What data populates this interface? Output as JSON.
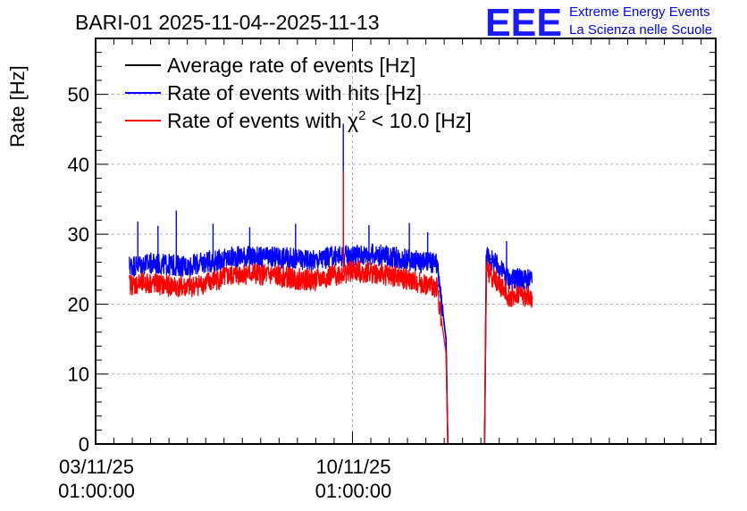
{
  "header": {
    "title": "BARI-01 2025-11-04--2025-11-13",
    "logo_letters": "EEE",
    "logo_line1": "Extreme Energy Events",
    "logo_line2": "La Scienza nelle Scuole"
  },
  "colors": {
    "average": "#000000",
    "hits": "#0000ff",
    "chi2": "#ff0000",
    "grid": "#b0b0b0",
    "logo": "#0000ff"
  },
  "chart_data": {
    "type": "line",
    "title": "BARI-01 2025-11-04--2025-11-13",
    "ylabel": "Rate [Hz]",
    "xlabel": "",
    "ylim": [
      0,
      58
    ],
    "xlim_days": [
      0,
      16.9
    ],
    "y_ticks": [
      0,
      10,
      20,
      30,
      40,
      50
    ],
    "y_tick_labels": [
      "0",
      "10",
      "20",
      "30",
      "40",
      "50"
    ],
    "x_ticks": [
      {
        "day": 0,
        "date": "03/11/25",
        "time": "01:00:00"
      },
      {
        "day": 7,
        "date": "10/11/25",
        "time": "01:00:00"
      }
    ],
    "legend": {
      "position": "top-left",
      "entries": [
        {
          "label": "Average rate of events [Hz]",
          "series": "average"
        },
        {
          "label": "Rate of events with hits [Hz]",
          "series": "hits"
        },
        {
          "label_prefix": "Rate of events with ",
          "label_symbol": "χ",
          "label_sup": "2",
          "label_suffix": " < 10.0 [Hz]",
          "series": "chi2"
        }
      ]
    },
    "series": [
      {
        "name": "Rate of events with hits [Hz]",
        "key": "hits",
        "noise": 1.4,
        "x": [
          0.92,
          1.5,
          2.0,
          2.5,
          3.0,
          3.5,
          4.0,
          4.5,
          5.0,
          5.5,
          6.0,
          6.5,
          7.0,
          7.5,
          8.0,
          8.5,
          8.9,
          9.1,
          9.3,
          9.55,
          9.6,
          9.8,
          10.6,
          10.65,
          11.0,
          11.3,
          11.5,
          11.9
        ],
        "y": [
          25.5,
          25.8,
          25.6,
          25.4,
          26.0,
          26.4,
          26.9,
          26.6,
          26.7,
          26.4,
          26.3,
          26.8,
          27.0,
          27.1,
          26.8,
          26.4,
          26.0,
          25.9,
          25.8,
          15.0,
          0,
          0,
          0,
          27.0,
          25.2,
          23.5,
          23.7,
          23.3
        ],
        "spikes": [
          {
            "x": 1.15,
            "y": 31.8
          },
          {
            "x": 1.7,
            "y": 31.2
          },
          {
            "x": 2.2,
            "y": 33.4
          },
          {
            "x": 3.2,
            "y": 31.5
          },
          {
            "x": 4.2,
            "y": 31.0
          },
          {
            "x": 5.45,
            "y": 31.5
          },
          {
            "x": 6.75,
            "y": 45.8
          },
          {
            "x": 7.45,
            "y": 31.3
          },
          {
            "x": 8.55,
            "y": 31.6
          },
          {
            "x": 9.05,
            "y": 30.3
          },
          {
            "x": 11.2,
            "y": 29.0
          }
        ]
      },
      {
        "name": "Rate of events with χ2 < 10.0 [Hz]",
        "key": "chi2",
        "noise": 1.4,
        "x": [
          0.92,
          1.5,
          2.0,
          2.5,
          3.0,
          3.5,
          4.0,
          4.5,
          5.0,
          5.5,
          6.0,
          6.5,
          7.0,
          7.5,
          8.0,
          8.5,
          8.9,
          9.1,
          9.3,
          9.55,
          9.6,
          9.8,
          10.6,
          10.65,
          11.0,
          11.3,
          11.5,
          11.9
        ],
        "y": [
          22.8,
          23.0,
          22.6,
          22.4,
          23.0,
          23.8,
          24.4,
          24.2,
          24.0,
          23.6,
          23.4,
          24.1,
          24.7,
          24.5,
          24.1,
          23.5,
          22.9,
          22.6,
          22.5,
          13.0,
          0,
          0,
          0,
          25.0,
          22.8,
          21.0,
          21.4,
          20.8
        ],
        "spikes": [
          {
            "x": 6.75,
            "y": 39.0
          }
        ]
      },
      {
        "name": "Average rate of events [Hz]",
        "key": "average",
        "x": [
          9.3,
          9.55,
          9.6,
          9.8,
          10.6,
          10.65,
          11.3
        ],
        "y": [
          26.0,
          15.0,
          0,
          0,
          0,
          27.0,
          24.0
        ],
        "spikes": []
      }
    ]
  }
}
